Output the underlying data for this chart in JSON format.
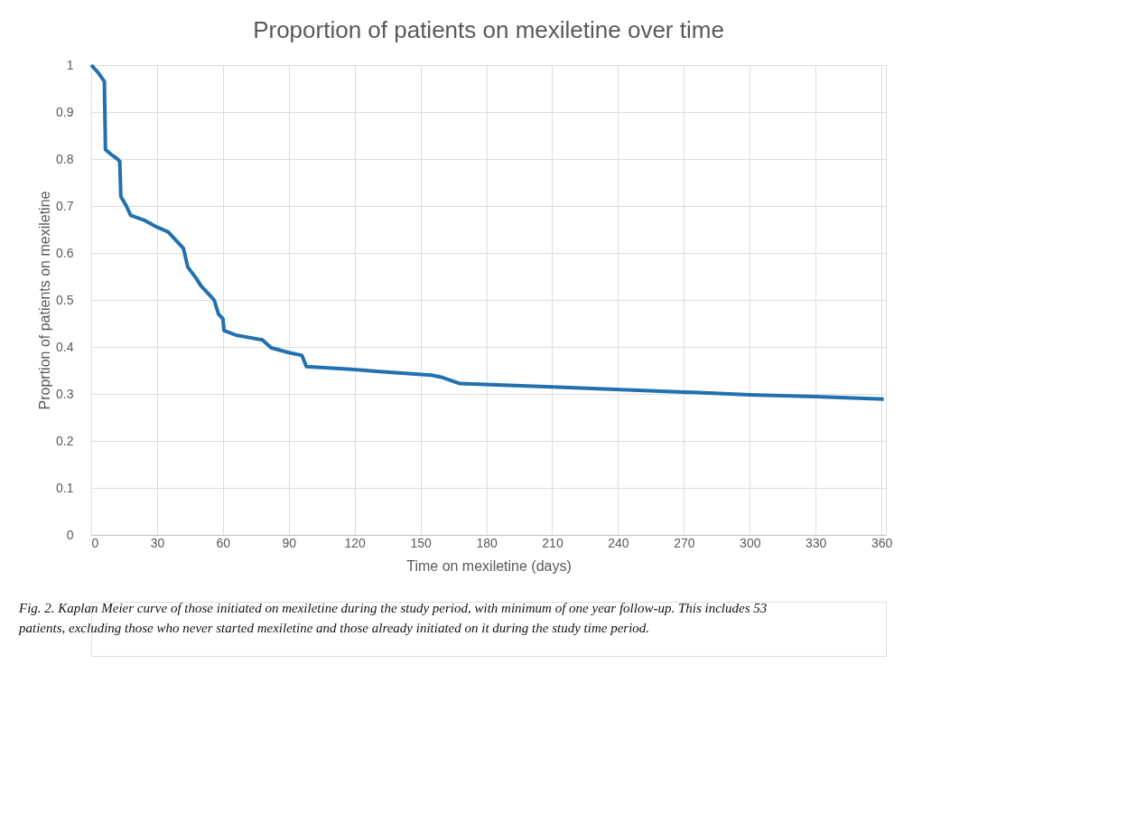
{
  "chart_data": {
    "type": "line",
    "title": "Proportion of patients on mexiletine over time",
    "xlabel": "Time on mexiletine (days)",
    "ylabel": "Proprtion of patients on mexiletine",
    "x": [
      0,
      3,
      6,
      6.5,
      9,
      12,
      13,
      13.5,
      16,
      18,
      24,
      30,
      35,
      38,
      42,
      44,
      48,
      50,
      53,
      56,
      58,
      60,
      60.5,
      66,
      72,
      78,
      82,
      90,
      96,
      98,
      120,
      130,
      155,
      160,
      168,
      210,
      270,
      300,
      330,
      361
    ],
    "series": [
      {
        "color": "#2171b0",
        "values": [
          1,
          0.985,
          0.965,
          0.82,
          0.81,
          0.8,
          0.795,
          0.72,
          0.7,
          0.68,
          0.67,
          0.655,
          0.645,
          0.63,
          0.61,
          0.57,
          0.545,
          0.53,
          0.515,
          0.5,
          0.47,
          0.46,
          0.435,
          0.425,
          0.42,
          0.415,
          0.398,
          0.388,
          0.382,
          0.358,
          0.352,
          0.348,
          0.34,
          0.335,
          0.322,
          0.315,
          0.304,
          0.298,
          0.294,
          0.289
        ]
      }
    ],
    "xlim": [
      0,
      362
    ],
    "xticks": [
      0,
      30,
      60,
      90,
      120,
      150,
      180,
      210,
      240,
      270,
      300,
      330,
      360
    ],
    "ylim": [
      0,
      1
    ],
    "yticks": [
      0,
      0.1,
      0.2,
      0.3,
      0.4,
      0.5,
      0.6,
      0.7,
      0.8,
      0.9,
      1
    ],
    "grid": true,
    "marker": "none",
    "line_style": "solid",
    "annotations": [
      "Fig. 2.  Kaplan Meier curve of those initiated on mexiletine during the study period, with minimum of one year follow-up. This includes 53 patients, excluding those who never started mexiletine and those already initiated on it during the study time period."
    ]
  }
}
